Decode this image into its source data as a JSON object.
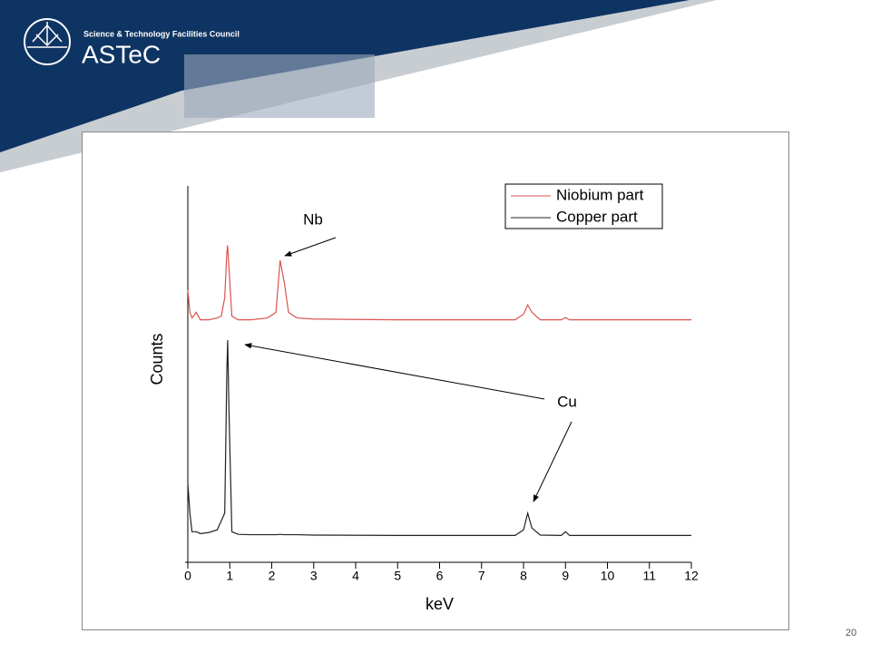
{
  "header": {
    "organisation": "Science & Technology Facilities Council",
    "brand": "ASTeC"
  },
  "page_number": "20",
  "chart_data": {
    "type": "line",
    "x_label": "keV",
    "y_label": "Counts",
    "x": [
      0,
      0.05,
      0.1,
      0.2,
      0.3,
      0.5,
      0.7,
      0.8,
      0.88,
      0.93,
      0.95,
      0.98,
      1.05,
      1.2,
      1.5,
      1.9,
      2.1,
      2.2,
      2.3,
      2.4,
      2.6,
      3,
      5,
      7.8,
      8.0,
      8.1,
      8.2,
      8.4,
      8.9,
      9.0,
      9.1,
      10,
      12
    ],
    "series": [
      {
        "name": "Niobium part",
        "color": "#d9534f",
        "values": [
          72,
          66,
          64.5,
          66,
          64,
          64,
          64.5,
          65,
          70,
          82,
          84,
          78,
          65,
          64,
          64,
          64.5,
          66,
          80,
          74,
          66,
          64.5,
          64.2,
          64,
          64,
          65.5,
          68,
          66,
          64,
          64,
          64.6,
          64,
          64,
          64
        ]
      },
      {
        "name": "Copper part",
        "color": "#222222",
        "values": [
          20,
          12,
          7,
          7,
          6.5,
          6.8,
          7.5,
          10,
          12,
          50,
          58.5,
          40,
          7,
          6.3,
          6.2,
          6.2,
          6.2,
          6.3,
          6.2,
          6.2,
          6.2,
          6.1,
          6,
          6,
          7.5,
          12,
          8,
          6.1,
          6,
          7,
          6,
          6,
          6
        ]
      }
    ],
    "annotations": [
      "Nb",
      "Cu"
    ],
    "xlim": [
      0,
      12
    ],
    "xticks": [
      0,
      1,
      2,
      3,
      4,
      5,
      6,
      7,
      8,
      9,
      10,
      11,
      12
    ],
    "ylim": [
      0,
      100
    ],
    "legend": "upper right"
  }
}
